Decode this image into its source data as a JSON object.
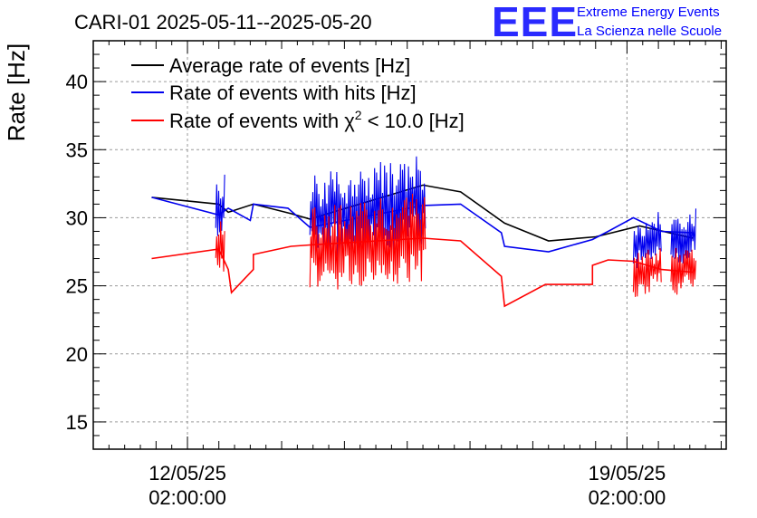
{
  "chart_data": {
    "type": "line",
    "title": "CARI-01 2025-05-11--2025-05-20",
    "ylabel": "Rate [Hz]",
    "xlabel": "",
    "ylim": [
      13,
      43
    ],
    "xlim_days": [
      0,
      10.08
    ],
    "yticks": [
      15,
      20,
      25,
      30,
      35,
      40
    ],
    "ytick_labels": [
      "15",
      "20",
      "25",
      "30",
      "35",
      "40"
    ],
    "xticks": [
      {
        "t": 1.5,
        "line1": "12/05/25",
        "line2": "02:00:00"
      },
      {
        "t": 8.5,
        "line1": "19/05/25",
        "line2": "02:00:00"
      }
    ],
    "grid": true,
    "legend_position": "top-left",
    "series": [
      {
        "name": "Average rate of events [Hz]",
        "legend_label": "Average rate of events [Hz]",
        "color": "#000000",
        "points": [
          [
            0.93,
            31.5
          ],
          [
            2.0,
            31.0
          ],
          [
            2.15,
            30.4
          ],
          [
            2.55,
            31.0
          ],
          [
            3.15,
            30.3
          ],
          [
            3.45,
            29.9
          ],
          [
            5.25,
            32.4
          ],
          [
            5.85,
            31.9
          ],
          [
            6.55,
            29.6
          ],
          [
            7.25,
            28.3
          ],
          [
            8.0,
            28.6
          ],
          [
            8.7,
            29.4
          ],
          [
            9.55,
            28.5
          ]
        ],
        "noisy": []
      },
      {
        "name": "Rate of events with hits [Hz]",
        "legend_label": "Rate of events with hits [Hz]",
        "color": "#0000ee",
        "points": [
          [
            0.93,
            31.5
          ],
          [
            2.0,
            30.2
          ],
          [
            2.15,
            30.7
          ],
          [
            2.5,
            29.8
          ],
          [
            2.55,
            31.0
          ],
          [
            3.1,
            30.7
          ],
          [
            3.45,
            29.3
          ],
          [
            5.25,
            30.9
          ],
          [
            5.85,
            31.0
          ],
          [
            6.5,
            28.9
          ],
          [
            6.55,
            27.9
          ],
          [
            7.25,
            27.5
          ],
          [
            7.95,
            28.4
          ],
          [
            8.2,
            29.0
          ],
          [
            8.6,
            30.0
          ],
          [
            9.05,
            29.0
          ],
          [
            9.55,
            28.9
          ]
        ],
        "noisy": [
          [
            1.95,
            2.1,
            27.9,
            33.3
          ],
          [
            3.45,
            5.3,
            26.7,
            34.6
          ],
          [
            8.6,
            9.05,
            26.2,
            30.5
          ],
          [
            9.2,
            9.6,
            26.3,
            30.7
          ]
        ]
      },
      {
        "name": "Rate of events with chi2 < 10.0 [Hz]",
        "legend_label_prefix": "Rate of events with ",
        "legend_label_symbol": "χ",
        "legend_label_sup": "2",
        "legend_label_suffix": " < 10.0 [Hz]",
        "color": "#ff0000",
        "points": [
          [
            0.93,
            27.0
          ],
          [
            2.0,
            27.7
          ],
          [
            2.15,
            26.2
          ],
          [
            2.2,
            24.5
          ],
          [
            2.55,
            26.2
          ],
          [
            2.55,
            27.3
          ],
          [
            3.15,
            27.9
          ],
          [
            3.45,
            28.0
          ],
          [
            5.25,
            28.5
          ],
          [
            5.85,
            28.3
          ],
          [
            6.5,
            25.7
          ],
          [
            6.55,
            23.5
          ],
          [
            7.2,
            25.1
          ],
          [
            7.25,
            25.1
          ],
          [
            7.95,
            25.1
          ],
          [
            7.95,
            26.5
          ],
          [
            8.2,
            26.9
          ],
          [
            8.6,
            26.8
          ],
          [
            9.05,
            26.2
          ],
          [
            9.55,
            26.0
          ]
        ],
        "noisy": [
          [
            1.95,
            2.1,
            25.5,
            30.2
          ],
          [
            3.45,
            5.3,
            24.4,
            31.9
          ],
          [
            8.6,
            9.05,
            24.1,
            28.1
          ],
          [
            9.2,
            9.6,
            24.0,
            28.3
          ]
        ]
      }
    ]
  },
  "logo": {
    "mark": "EEE",
    "line1": "Extreme Energy Events",
    "line2": "La Scienza nelle Scuole"
  }
}
